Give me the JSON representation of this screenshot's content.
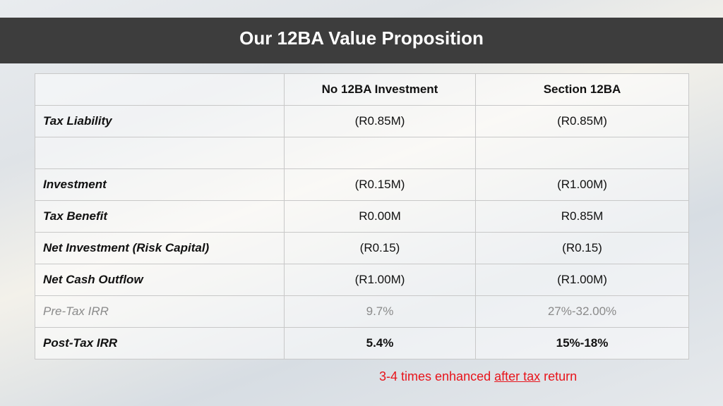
{
  "header": {
    "title": "Our 12BA Value Proposition"
  },
  "table": {
    "columns": [
      "No 12BA Investment",
      "Section 12BA"
    ],
    "rows": [
      {
        "label": "Tax Liability",
        "cells": [
          "(R0.85M)",
          "(R0.85M)"
        ]
      },
      {
        "label": "Investment",
        "cells": [
          "(R0.15M)",
          "(R1.00M)"
        ]
      },
      {
        "label": "Tax Benefit",
        "cells": [
          "R0.00M",
          "R0.85M"
        ]
      },
      {
        "label": "Net Investment (Risk Capital)",
        "cells": [
          "(R0.15)",
          "(R0.15)"
        ]
      },
      {
        "label": "Net Cash Outflow",
        "cells": [
          "(R1.00M)",
          "(R1.00M)"
        ]
      },
      {
        "label": "Pre-Tax IRR",
        "cells": [
          "9.7%",
          "27%-32.00%"
        ]
      },
      {
        "label": "Post-Tax IRR",
        "cells": [
          "5.4%",
          "15%-18%"
        ]
      }
    ]
  },
  "footnote": {
    "before": "3-4 times enhanced",
    "link": "after tax",
    "after": "return"
  }
}
